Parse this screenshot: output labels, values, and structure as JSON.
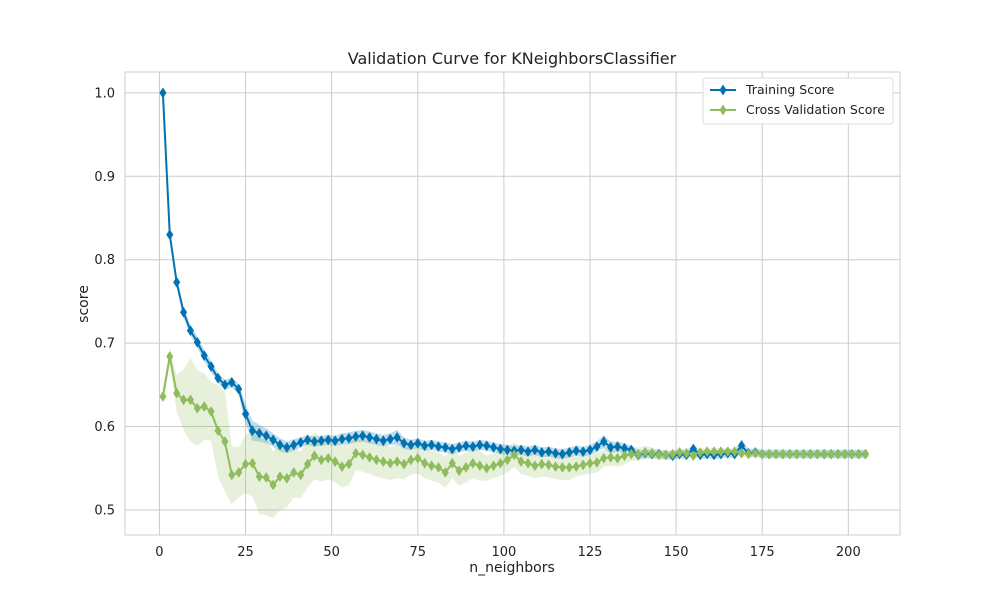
{
  "chart_data": {
    "type": "line",
    "title": "Validation Curve for KNeighborsClassifier",
    "xlabel": "n_neighbors",
    "ylabel": "score",
    "xlim": [
      -10,
      215
    ],
    "ylim": [
      0.47,
      1.025
    ],
    "xticks": [
      0,
      25,
      50,
      75,
      100,
      125,
      150,
      175,
      200
    ],
    "yticks": [
      0.5,
      0.6,
      0.7,
      0.8,
      0.9,
      1.0
    ],
    "ytick_labels": [
      "0.5",
      "0.6",
      "0.7",
      "0.8",
      "0.9",
      "1.0"
    ],
    "grid": true,
    "legend": "top-right",
    "x_start": 1,
    "x_step": 2,
    "series": [
      {
        "name": "Training Score",
        "color": "#0072b2",
        "marker": "diamond",
        "values": [
          1.0,
          0.83,
          0.773,
          0.737,
          0.715,
          0.701,
          0.685,
          0.672,
          0.658,
          0.65,
          0.653,
          0.645,
          0.615,
          0.595,
          0.592,
          0.589,
          0.584,
          0.578,
          0.575,
          0.578,
          0.581,
          0.584,
          0.582,
          0.583,
          0.584,
          0.583,
          0.585,
          0.586,
          0.588,
          0.589,
          0.587,
          0.585,
          0.583,
          0.585,
          0.587,
          0.58,
          0.578,
          0.58,
          0.577,
          0.578,
          0.576,
          0.575,
          0.573,
          0.575,
          0.577,
          0.576,
          0.578,
          0.577,
          0.575,
          0.573,
          0.572,
          0.571,
          0.572,
          0.57,
          0.572,
          0.569,
          0.57,
          0.568,
          0.567,
          0.569,
          0.571,
          0.57,
          0.572,
          0.576,
          0.582,
          0.575,
          0.576,
          0.574,
          0.572,
          0.566,
          0.568,
          0.567,
          0.567,
          0.566,
          0.565,
          0.567,
          0.566,
          0.573,
          0.566,
          0.567,
          0.566,
          0.567,
          0.568,
          0.567,
          0.577,
          0.568,
          0.569,
          0.567,
          0.567,
          0.567,
          0.567,
          0.567,
          0.567,
          0.567,
          0.567,
          0.567,
          0.567,
          0.567,
          0.567,
          0.567,
          0.567,
          0.567,
          0.567
        ],
        "band": [
          0.0,
          0.006,
          0.006,
          0.006,
          0.006,
          0.007,
          0.007,
          0.007,
          0.006,
          0.006,
          0.006,
          0.006,
          0.012,
          0.012,
          0.01,
          0.009,
          0.008,
          0.008,
          0.007,
          0.007,
          0.006,
          0.006,
          0.006,
          0.006,
          0.006,
          0.006,
          0.007,
          0.007,
          0.007,
          0.007,
          0.007,
          0.007,
          0.007,
          0.007,
          0.009,
          0.007,
          0.006,
          0.006,
          0.006,
          0.006,
          0.006,
          0.006,
          0.006,
          0.006,
          0.006,
          0.006,
          0.006,
          0.006,
          0.006,
          0.006,
          0.006,
          0.006,
          0.006,
          0.006,
          0.006,
          0.006,
          0.006,
          0.006,
          0.006,
          0.006,
          0.006,
          0.006,
          0.006,
          0.006,
          0.008,
          0.007,
          0.006,
          0.006,
          0.005,
          0.005,
          0.005,
          0.005,
          0.005,
          0.005,
          0.005,
          0.005,
          0.005,
          0.006,
          0.005,
          0.005,
          0.005,
          0.005,
          0.005,
          0.005,
          0.008,
          0.005,
          0.005,
          0.005,
          0.005,
          0.005,
          0.005,
          0.005,
          0.005,
          0.005,
          0.005,
          0.005,
          0.005,
          0.005,
          0.005,
          0.005,
          0.005,
          0.005,
          0.005
        ]
      },
      {
        "name": "Cross Validation Score",
        "color": "#8fbc5c",
        "marker": "diamond",
        "values": [
          0.636,
          0.684,
          0.64,
          0.632,
          0.632,
          0.622,
          0.624,
          0.618,
          0.595,
          0.582,
          0.542,
          0.545,
          0.555,
          0.556,
          0.54,
          0.539,
          0.53,
          0.54,
          0.538,
          0.545,
          0.542,
          0.555,
          0.565,
          0.56,
          0.562,
          0.558,
          0.552,
          0.555,
          0.568,
          0.566,
          0.563,
          0.56,
          0.558,
          0.556,
          0.558,
          0.555,
          0.56,
          0.562,
          0.556,
          0.553,
          0.551,
          0.545,
          0.556,
          0.547,
          0.551,
          0.556,
          0.553,
          0.55,
          0.553,
          0.556,
          0.56,
          0.566,
          0.558,
          0.556,
          0.553,
          0.555,
          0.554,
          0.552,
          0.551,
          0.551,
          0.552,
          0.554,
          0.556,
          0.557,
          0.562,
          0.563,
          0.562,
          0.565,
          0.567,
          0.567,
          0.569,
          0.568,
          0.566,
          0.566,
          0.567,
          0.569,
          0.568,
          0.565,
          0.569,
          0.57,
          0.57,
          0.57,
          0.57,
          0.57,
          0.568,
          0.567,
          0.568,
          0.567,
          0.567,
          0.567,
          0.567,
          0.567,
          0.567,
          0.567,
          0.567,
          0.567,
          0.567,
          0.567,
          0.567,
          0.567,
          0.567,
          0.567,
          0.567
        ],
        "band": [
          0.01,
          0.01,
          0.022,
          0.036,
          0.05,
          0.045,
          0.04,
          0.035,
          0.055,
          0.06,
          0.035,
          0.03,
          0.035,
          0.04,
          0.045,
          0.045,
          0.04,
          0.04,
          0.035,
          0.03,
          0.028,
          0.028,
          0.028,
          0.026,
          0.025,
          0.025,
          0.025,
          0.025,
          0.02,
          0.02,
          0.02,
          0.02,
          0.02,
          0.02,
          0.02,
          0.018,
          0.018,
          0.018,
          0.018,
          0.018,
          0.018,
          0.018,
          0.018,
          0.018,
          0.018,
          0.018,
          0.018,
          0.015,
          0.015,
          0.015,
          0.015,
          0.015,
          0.015,
          0.015,
          0.015,
          0.015,
          0.015,
          0.015,
          0.015,
          0.015,
          0.012,
          0.012,
          0.012,
          0.012,
          0.01,
          0.01,
          0.01,
          0.01,
          0.008,
          0.008,
          0.008,
          0.007,
          0.006,
          0.005,
          0.005,
          0.005,
          0.005,
          0.005,
          0.005,
          0.004,
          0.004,
          0.004,
          0.004,
          0.004,
          0.004,
          0.004,
          0.004,
          0.004,
          0.004,
          0.004,
          0.004,
          0.004,
          0.004,
          0.004,
          0.004,
          0.004,
          0.004,
          0.004,
          0.004,
          0.004,
          0.004,
          0.004,
          0.004
        ]
      }
    ]
  }
}
